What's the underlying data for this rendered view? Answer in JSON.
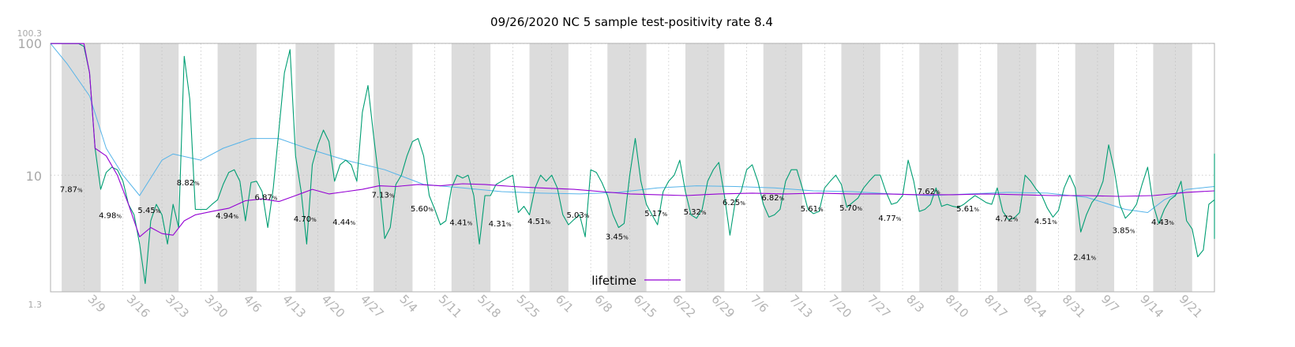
{
  "chart_data": {
    "type": "line",
    "title": "09/26/2020 NC 5 sample test-positivity rate 8.4",
    "y_scale": "log",
    "ylim": [
      1.3,
      100.3
    ],
    "y_ticks_major": [
      "100",
      "10"
    ],
    "y_extreme_labels": {
      "top": "100.3",
      "bottom": "1.3"
    },
    "x_tick_labels": [
      "3/9",
      "3/16",
      "3/23",
      "3/30",
      "4/6",
      "4/13",
      "4/20",
      "4/27",
      "5/4",
      "5/11",
      "5/18",
      "5/25",
      "6/1",
      "6/8",
      "6/15",
      "6/22",
      "6/29",
      "7/6",
      "7/13",
      "7/20",
      "7/27",
      "8/3",
      "8/10",
      "8/17",
      "8/24",
      "8/31",
      "9/7",
      "9/14",
      "9/21"
    ],
    "grid": true,
    "shaded_weeks": true,
    "legend": {
      "placement": "bottom-center",
      "entries": [
        {
          "label": "lifetime",
          "color": "#9400d3"
        }
      ]
    },
    "colors": {
      "daily": "#009e73",
      "lifetime": "#9400d3",
      "trend": "#56b4e9",
      "shade": "#dcdcdc",
      "grid": "#bdbdbd"
    },
    "weekly_labels": [
      {
        "x": "3/6",
        "text": "7.87",
        "y": 7.87
      },
      {
        "x": "3/13",
        "text": "4.98",
        "y": 4.98
      },
      {
        "x": "3/20",
        "text": "5.45",
        "y": 5.45
      },
      {
        "x": "3/27",
        "text": "8.82",
        "y": 8.82
      },
      {
        "x": "4/3",
        "text": "4.94",
        "y": 4.94
      },
      {
        "x": "4/10",
        "text": "6.87",
        "y": 6.87
      },
      {
        "x": "4/17",
        "text": "4.70",
        "y": 4.7
      },
      {
        "x": "4/24",
        "text": "4.44",
        "y": 4.44
      },
      {
        "x": "5/1",
        "text": "7.13",
        "y": 7.13
      },
      {
        "x": "5/8",
        "text": "5.60",
        "y": 5.6
      },
      {
        "x": "5/15",
        "text": "4.41",
        "y": 4.41
      },
      {
        "x": "5/22",
        "text": "4.31",
        "y": 4.31
      },
      {
        "x": "5/29",
        "text": "4.51",
        "y": 4.51
      },
      {
        "x": "6/5",
        "text": "5.03",
        "y": 5.03
      },
      {
        "x": "6/12",
        "text": "3.45",
        "y": 3.45
      },
      {
        "x": "6/19",
        "text": "5.17",
        "y": 5.17
      },
      {
        "x": "6/26",
        "text": "5.32",
        "y": 5.32
      },
      {
        "x": "7/3",
        "text": "6.25",
        "y": 6.25
      },
      {
        "x": "7/10",
        "text": "6.82",
        "y": 6.82
      },
      {
        "x": "7/17",
        "text": "5.61",
        "y": 5.61
      },
      {
        "x": "7/24",
        "text": "5.70",
        "y": 5.7
      },
      {
        "x": "7/31",
        "text": "4.77",
        "y": 4.77
      },
      {
        "x": "8/7",
        "text": "7.62",
        "y": 7.62
      },
      {
        "x": "8/14",
        "text": "5.61",
        "y": 5.61
      },
      {
        "x": "8/21",
        "text": "4.72",
        "y": 4.72
      },
      {
        "x": "8/28",
        "text": "4.51",
        "y": 4.51
      },
      {
        "x": "9/4",
        "text": "2.41",
        "y": 2.41
      },
      {
        "x": "9/11",
        "text": "3.85",
        "y": 3.85
      },
      {
        "x": "9/18",
        "text": "4.43",
        "y": 4.43
      }
    ],
    "series": [
      {
        "name": "",
        "color": "#009e73",
        "x_start": "3/3",
        "step_days": 1,
        "values": [
          100,
          100,
          100,
          100,
          100,
          100,
          95,
          60,
          16,
          7.8,
          10.5,
          11.5,
          11,
          9,
          6,
          5,
          3,
          1.5,
          4.5,
          6,
          5,
          3,
          6,
          4,
          80,
          38,
          5.5,
          5.5,
          5.5,
          6,
          6.5,
          8.5,
          10.5,
          11,
          9,
          4.5,
          8.8,
          9,
          7.5,
          4,
          8,
          22,
          60,
          90,
          14,
          7.5,
          3,
          12,
          17,
          22,
          18,
          9,
          12,
          13,
          12,
          9,
          30,
          48,
          20,
          9,
          3.3,
          4,
          8.5,
          10,
          14,
          18,
          19,
          14,
          7,
          5.5,
          4.2,
          4.5,
          8,
          10,
          9.5,
          10,
          7,
          3,
          7,
          7,
          8.5,
          9,
          9.5,
          10,
          5.2,
          5.8,
          5,
          8,
          10,
          9,
          10,
          8,
          5,
          4.2,
          4.6,
          5,
          3.4,
          11,
          10.5,
          8.8,
          7,
          5,
          4,
          4.3,
          10,
          19,
          9,
          6,
          5,
          4.2,
          7.5,
          9,
          10,
          13,
          7.5,
          5,
          4.7,
          5.5,
          9,
          11,
          12.5,
          7,
          3.5,
          6.5,
          7.5,
          11,
          12,
          9,
          6,
          4.8,
          5,
          5.5,
          9,
          11,
          11,
          8,
          5.5,
          5.1,
          5.3,
          8,
          9,
          10,
          8.5,
          5.7,
          6.2,
          6.7,
          8,
          9,
          10,
          10,
          7.5,
          6,
          6.2,
          7,
          13,
          9,
          5.3,
          5.5,
          6,
          8,
          5.8,
          6,
          5.8,
          5.7,
          6,
          6.5,
          7,
          6.6,
          6.2,
          6,
          8,
          5.3,
          4.6,
          4.7,
          5.2,
          10,
          9,
          7.8,
          7,
          5.6,
          4.8,
          5.4,
          8,
          10,
          8,
          3.7,
          5,
          6.2,
          7,
          9,
          17,
          11,
          6,
          4.7,
          5.2,
          6,
          8.5,
          11.5,
          6,
          4.3,
          5.5,
          6.5,
          7,
          9,
          4.5,
          3.9,
          2.4,
          2.7,
          6,
          6.5,
          4,
          3.3,
          3.7,
          3.7,
          6,
          5,
          3.4,
          7,
          10.5,
          14.5,
          5,
          4.5,
          9.5,
          9
        ]
      },
      {
        "name": "lifetime",
        "color": "#9400d3",
        "points": [
          [
            "3/3",
            100
          ],
          [
            "3/9",
            100
          ],
          [
            "3/10",
            60
          ],
          [
            "3/11",
            16
          ],
          [
            "3/13",
            14
          ],
          [
            "3/15",
            10
          ],
          [
            "3/17",
            6
          ],
          [
            "3/19",
            3.4
          ],
          [
            "3/21",
            4
          ],
          [
            "3/23",
            3.6
          ],
          [
            "3/25",
            3.5
          ],
          [
            "3/27",
            4.5
          ],
          [
            "3/29",
            5
          ],
          [
            "4/1",
            5.3
          ],
          [
            "4/4",
            5.6
          ],
          [
            "4/7",
            6.4
          ],
          [
            "4/10",
            6.6
          ],
          [
            "4/13",
            6.3
          ],
          [
            "4/16",
            7
          ],
          [
            "4/19",
            7.8
          ],
          [
            "4/22",
            7.2
          ],
          [
            "4/25",
            7.5
          ],
          [
            "4/28",
            7.8
          ],
          [
            "5/1",
            8.3
          ],
          [
            "5/4",
            8.2
          ],
          [
            "5/8",
            8.5
          ],
          [
            "5/12",
            8.3
          ],
          [
            "5/16",
            8.6
          ],
          [
            "5/20",
            8.5
          ],
          [
            "5/25",
            8.2
          ],
          [
            "5/30",
            8
          ],
          [
            "6/5",
            7.8
          ],
          [
            "6/10",
            7.5
          ],
          [
            "6/15",
            7.2
          ],
          [
            "6/20",
            7.1
          ],
          [
            "6/25",
            7.0
          ],
          [
            "7/1",
            7.2
          ],
          [
            "7/7",
            7.3
          ],
          [
            "7/13",
            7.2
          ],
          [
            "7/19",
            7.3
          ],
          [
            "7/25",
            7.2
          ],
          [
            "7/31",
            7.2
          ],
          [
            "8/6",
            7.1
          ],
          [
            "8/12",
            7.1
          ],
          [
            "8/18",
            7.2
          ],
          [
            "8/24",
            7.1
          ],
          [
            "8/30",
            7.0
          ],
          [
            "9/5",
            7.0
          ],
          [
            "9/11",
            6.9
          ],
          [
            "9/17",
            7.0
          ],
          [
            "9/23",
            7.4
          ],
          [
            "9/28",
            7.6
          ]
        ]
      },
      {
        "name": "",
        "color": "#56b4e9",
        "points": [
          [
            "3/3",
            100
          ],
          [
            "3/6",
            70
          ],
          [
            "3/10",
            40
          ],
          [
            "3/13",
            16
          ],
          [
            "3/16",
            10
          ],
          [
            "3/19",
            7
          ],
          [
            "3/23",
            13
          ],
          [
            "3/25",
            14.5
          ],
          [
            "3/30",
            13
          ],
          [
            "4/3",
            16
          ],
          [
            "4/8",
            19
          ],
          [
            "4/13",
            19
          ],
          [
            "4/18",
            16
          ],
          [
            "4/25",
            13
          ],
          [
            "5/2",
            11
          ],
          [
            "5/9",
            8.5
          ],
          [
            "5/16",
            8
          ],
          [
            "5/23",
            7.5
          ],
          [
            "5/30",
            7.3
          ],
          [
            "6/6",
            7.2
          ],
          [
            "6/13",
            7.4
          ],
          [
            "6/20",
            8
          ],
          [
            "6/27",
            8.3
          ],
          [
            "7/4",
            8.2
          ],
          [
            "7/11",
            8
          ],
          [
            "7/18",
            7.6
          ],
          [
            "7/25",
            7.5
          ],
          [
            "8/1",
            7.2
          ],
          [
            "8/8",
            7
          ],
          [
            "8/15",
            7.2
          ],
          [
            "8/22",
            7.4
          ],
          [
            "8/29",
            7.3
          ],
          [
            "9/5",
            6.8
          ],
          [
            "9/12",
            5.5
          ],
          [
            "9/16",
            5.2
          ],
          [
            "9/19",
            6.5
          ],
          [
            "9/23",
            7.8
          ],
          [
            "9/28",
            8.2
          ]
        ]
      }
    ]
  }
}
